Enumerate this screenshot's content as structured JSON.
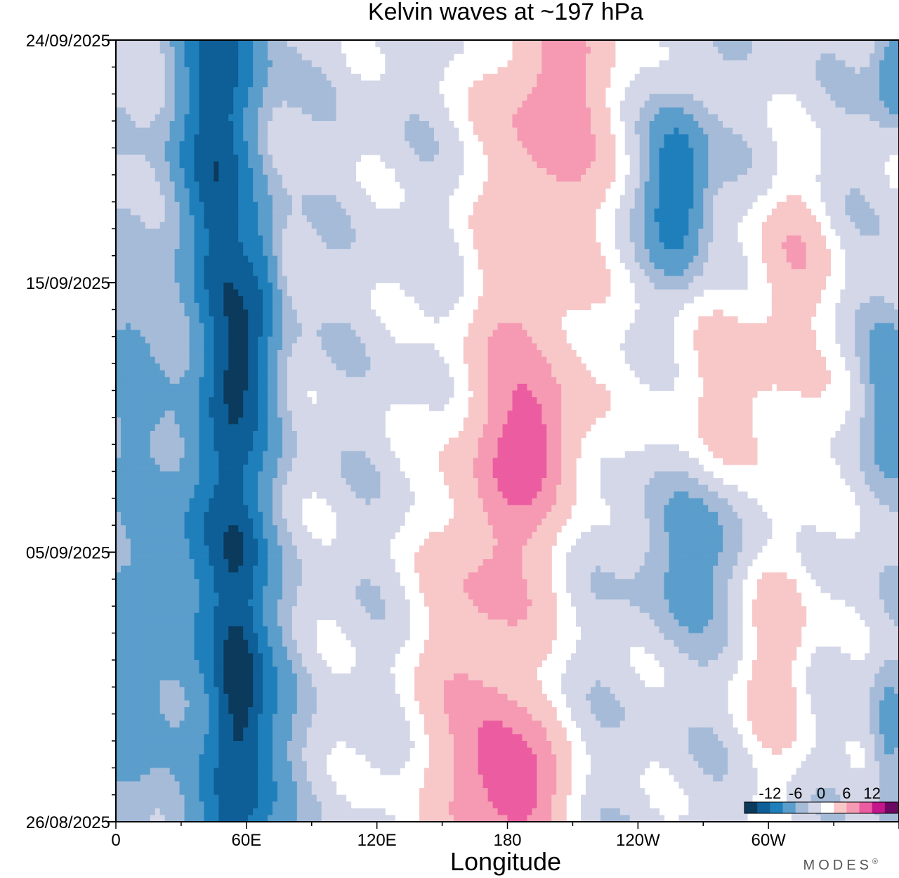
{
  "chart_data": {
    "type": "heatmap",
    "title": "Kelvin waves at ~197 hPa",
    "xlabel": "Longitude",
    "ylabel": "",
    "x_ticks": [
      "0",
      "60E",
      "120E",
      "180",
      "120W",
      "60W"
    ],
    "x_tick_values": [
      0,
      60,
      120,
      180,
      240,
      300
    ],
    "xlim": [
      0,
      360
    ],
    "y_ticks": [
      "26/08/2025",
      "05/09/2025",
      "15/09/2025",
      "24/09/2025"
    ],
    "y_tick_values": [
      0,
      10,
      20,
      29
    ],
    "ylim": [
      0,
      29
    ],
    "contour_levels": [
      -15,
      -12,
      -9,
      -6,
      -3,
      -1,
      1,
      3,
      6,
      9,
      12,
      15
    ],
    "colors": [
      "#0b3a5c",
      "#0e5f97",
      "#1f7fbb",
      "#5b9dcb",
      "#a5bbd8",
      "#d4d7e8",
      "#ffffff",
      "#f8c8c9",
      "#f59ab2",
      "#ec5ca0",
      "#c3158c",
      "#6d0764"
    ],
    "colorbar": {
      "labels": [
        "-12",
        "-6",
        "0",
        "6",
        "12"
      ],
      "label_values": [
        -12,
        -6,
        0,
        6,
        12
      ]
    },
    "features": [
      {
        "type": "negative band",
        "lon_range": [
          30,
          85
        ],
        "time_range": [
          0,
          29
        ],
        "peak": -14
      },
      {
        "type": "positive band",
        "lon_range": [
          140,
          230
        ],
        "time_range": [
          0,
          29
        ],
        "peak": 12
      },
      {
        "type": "negative anomaly",
        "lon_range": [
          240,
          295
        ],
        "time_range": [
          18,
          27
        ],
        "peak": -10
      },
      {
        "type": "positive band",
        "lon_range": [
          160,
          360
        ],
        "time_range": [
          8,
          22
        ],
        "peak": 7
      },
      {
        "type": "positive anomaly",
        "lon_range": [
          260,
          330
        ],
        "time_range": [
          0,
          14
        ],
        "peak": 6
      },
      {
        "type": "negative anomaly",
        "lon_range": [
          0,
          20
        ],
        "time_range": [
          0,
          20
        ],
        "peak": -6
      },
      {
        "type": "negative anomaly",
        "lon_range": [
          340,
          360
        ],
        "time_range": [
          0,
          29
        ],
        "peak": -5
      }
    ]
  },
  "brand": "MODES",
  "brand_mark": "®"
}
